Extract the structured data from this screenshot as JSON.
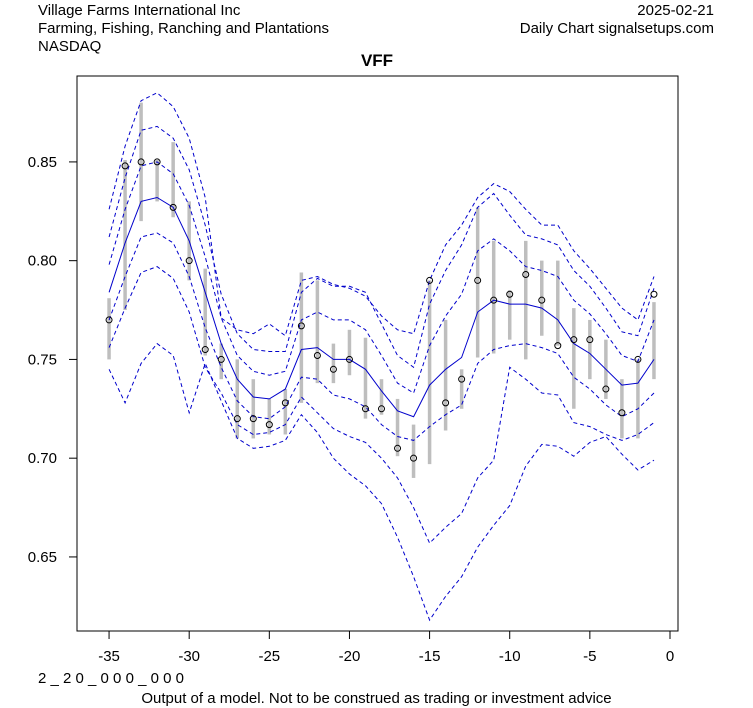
{
  "header": {
    "company": "Village Farms International Inc",
    "sector": "Farming, Fishing, Ranching and Plantations",
    "exchange": "NASDAQ",
    "date": "2025-02-21",
    "source": "Daily Chart signalsetups.com"
  },
  "footer": {
    "code": "2 _ 2 0 _ 0 0 0 _ 0 0 0",
    "disclaimer": "Output of a model. Not to be construed as trading or investment advice"
  },
  "colors": {
    "band": "#0000cc",
    "center": "#0000cc",
    "bar": "#bebebe",
    "point": "#000000",
    "axis": "#000000"
  },
  "chart_data": {
    "type": "line",
    "title": "VFF",
    "xlabel": "",
    "ylabel": "",
    "xlim": [
      -37,
      0.5
    ],
    "ylim": [
      0.6125,
      0.8935
    ],
    "x_ticks": [
      -35,
      -30,
      -25,
      -20,
      -15,
      -10,
      -5,
      0
    ],
    "x_tick_labels": [
      "-35",
      "-30",
      "-25",
      "-20",
      "-15",
      "-10",
      "-5",
      "0"
    ],
    "y_ticks": [
      0.65,
      0.7,
      0.75,
      0.8,
      0.85
    ],
    "y_tick_labels": [
      "0.65",
      "0.70",
      "0.75",
      "0.80",
      "0.85"
    ],
    "grid": false,
    "x": [
      -35,
      -34,
      -33,
      -32,
      -31,
      -30,
      -29,
      -28,
      -27,
      -26,
      -25,
      -24,
      -23,
      -22,
      -21,
      -20,
      -19,
      -18,
      -17,
      -16,
      -15,
      -14,
      -13,
      -12,
      -11,
      -10,
      -9,
      -8,
      -7,
      -6,
      -5,
      -4,
      -3,
      -2,
      -1
    ],
    "points": {
      "close": [
        0.77,
        0.848,
        0.85,
        0.85,
        0.827,
        0.8,
        0.755,
        0.75,
        0.72,
        0.72,
        0.717,
        0.728,
        0.767,
        0.752,
        0.745,
        0.75,
        0.725,
        0.725,
        0.705,
        0.7,
        0.79,
        0.728,
        0.74,
        0.79,
        0.78,
        0.783,
        0.793,
        0.78,
        0.757,
        0.76,
        0.76,
        0.735,
        0.723,
        0.75,
        0.783
      ],
      "high": [
        0.781,
        0.851,
        0.88,
        0.851,
        0.86,
        0.83,
        0.796,
        0.758,
        0.75,
        0.74,
        0.73,
        0.735,
        0.794,
        0.79,
        0.758,
        0.765,
        0.761,
        0.74,
        0.73,
        0.717,
        0.79,
        0.77,
        0.745,
        0.827,
        0.81,
        0.785,
        0.81,
        0.8,
        0.8,
        0.776,
        0.77,
        0.76,
        0.74,
        0.75,
        0.779
      ],
      "low": [
        0.75,
        0.775,
        0.82,
        0.83,
        0.822,
        0.79,
        0.752,
        0.74,
        0.71,
        0.71,
        0.712,
        0.712,
        0.728,
        0.738,
        0.738,
        0.742,
        0.72,
        0.722,
        0.701,
        0.69,
        0.697,
        0.714,
        0.725,
        0.751,
        0.753,
        0.76,
        0.75,
        0.762,
        0.757,
        0.725,
        0.74,
        0.73,
        0.71,
        0.71,
        0.74
      ]
    },
    "series": [
      {
        "name": "center",
        "style": "solid",
        "values": [
          0.784,
          0.809,
          0.83,
          0.832,
          0.827,
          0.81,
          0.784,
          0.758,
          0.74,
          0.731,
          0.73,
          0.735,
          0.755,
          0.756,
          0.75,
          0.75,
          0.745,
          0.734,
          0.724,
          0.721,
          0.737,
          0.745,
          0.751,
          0.774,
          0.78,
          0.778,
          0.778,
          0.776,
          0.77,
          0.758,
          0.753,
          0.745,
          0.737,
          0.738,
          0.75
        ]
      },
      {
        "name": "upper1",
        "style": "dashed",
        "values": [
          0.798,
          0.826,
          0.848,
          0.85,
          0.844,
          0.828,
          0.802,
          0.771,
          0.752,
          0.744,
          0.742,
          0.744,
          0.77,
          0.774,
          0.77,
          0.77,
          0.765,
          0.752,
          0.738,
          0.733,
          0.757,
          0.772,
          0.783,
          0.805,
          0.811,
          0.805,
          0.797,
          0.795,
          0.792,
          0.78,
          0.773,
          0.763,
          0.752,
          0.749,
          0.77
        ]
      },
      {
        "name": "upper2",
        "style": "dashed",
        "values": [
          0.812,
          0.842,
          0.866,
          0.868,
          0.862,
          0.846,
          0.818,
          0.783,
          0.763,
          0.755,
          0.754,
          0.754,
          0.784,
          0.791,
          0.787,
          0.787,
          0.784,
          0.768,
          0.752,
          0.746,
          0.778,
          0.795,
          0.808,
          0.827,
          0.834,
          0.823,
          0.813,
          0.811,
          0.808,
          0.795,
          0.787,
          0.776,
          0.764,
          0.762,
          0.786
        ]
      },
      {
        "name": "upper3",
        "style": "dashed",
        "values": [
          0.826,
          0.858,
          0.881,
          0.885,
          0.878,
          0.862,
          0.832,
          0.771,
          0.765,
          0.763,
          0.768,
          0.762,
          0.79,
          0.792,
          0.788,
          0.786,
          0.782,
          0.772,
          0.765,
          0.763,
          0.79,
          0.808,
          0.818,
          0.832,
          0.839,
          0.835,
          0.826,
          0.818,
          0.818,
          0.805,
          0.796,
          0.786,
          0.776,
          0.77,
          0.792
        ]
      },
      {
        "name": "lower1",
        "style": "dashed",
        "values": [
          0.77,
          0.792,
          0.812,
          0.814,
          0.809,
          0.792,
          0.766,
          0.746,
          0.729,
          0.721,
          0.72,
          0.726,
          0.741,
          0.74,
          0.732,
          0.73,
          0.726,
          0.717,
          0.711,
          0.709,
          0.716,
          0.722,
          0.727,
          0.748,
          0.755,
          0.757,
          0.758,
          0.756,
          0.753,
          0.741,
          0.735,
          0.727,
          0.721,
          0.725,
          0.733
        ]
      },
      {
        "name": "lower2",
        "style": "dashed",
        "values": [
          0.756,
          0.776,
          0.794,
          0.797,
          0.791,
          0.774,
          0.746,
          0.733,
          0.717,
          0.712,
          0.713,
          0.717,
          0.731,
          0.723,
          0.715,
          0.711,
          0.708,
          0.7,
          0.69,
          0.675,
          0.657,
          0.665,
          0.672,
          0.69,
          0.699,
          0.746,
          0.74,
          0.733,
          0.732,
          0.718,
          0.716,
          0.712,
          0.709,
          0.712,
          0.718
        ]
      },
      {
        "name": "lower3",
        "style": "dashed",
        "values": [
          0.745,
          0.728,
          0.748,
          0.758,
          0.752,
          0.723,
          0.748,
          0.729,
          0.71,
          0.705,
          0.706,
          0.709,
          0.722,
          0.713,
          0.7,
          0.692,
          0.686,
          0.677,
          0.66,
          0.64,
          0.618,
          0.63,
          0.64,
          0.655,
          0.666,
          0.676,
          0.696,
          0.707,
          0.706,
          0.701,
          0.708,
          0.711,
          0.702,
          0.694,
          0.699
        ]
      }
    ]
  }
}
